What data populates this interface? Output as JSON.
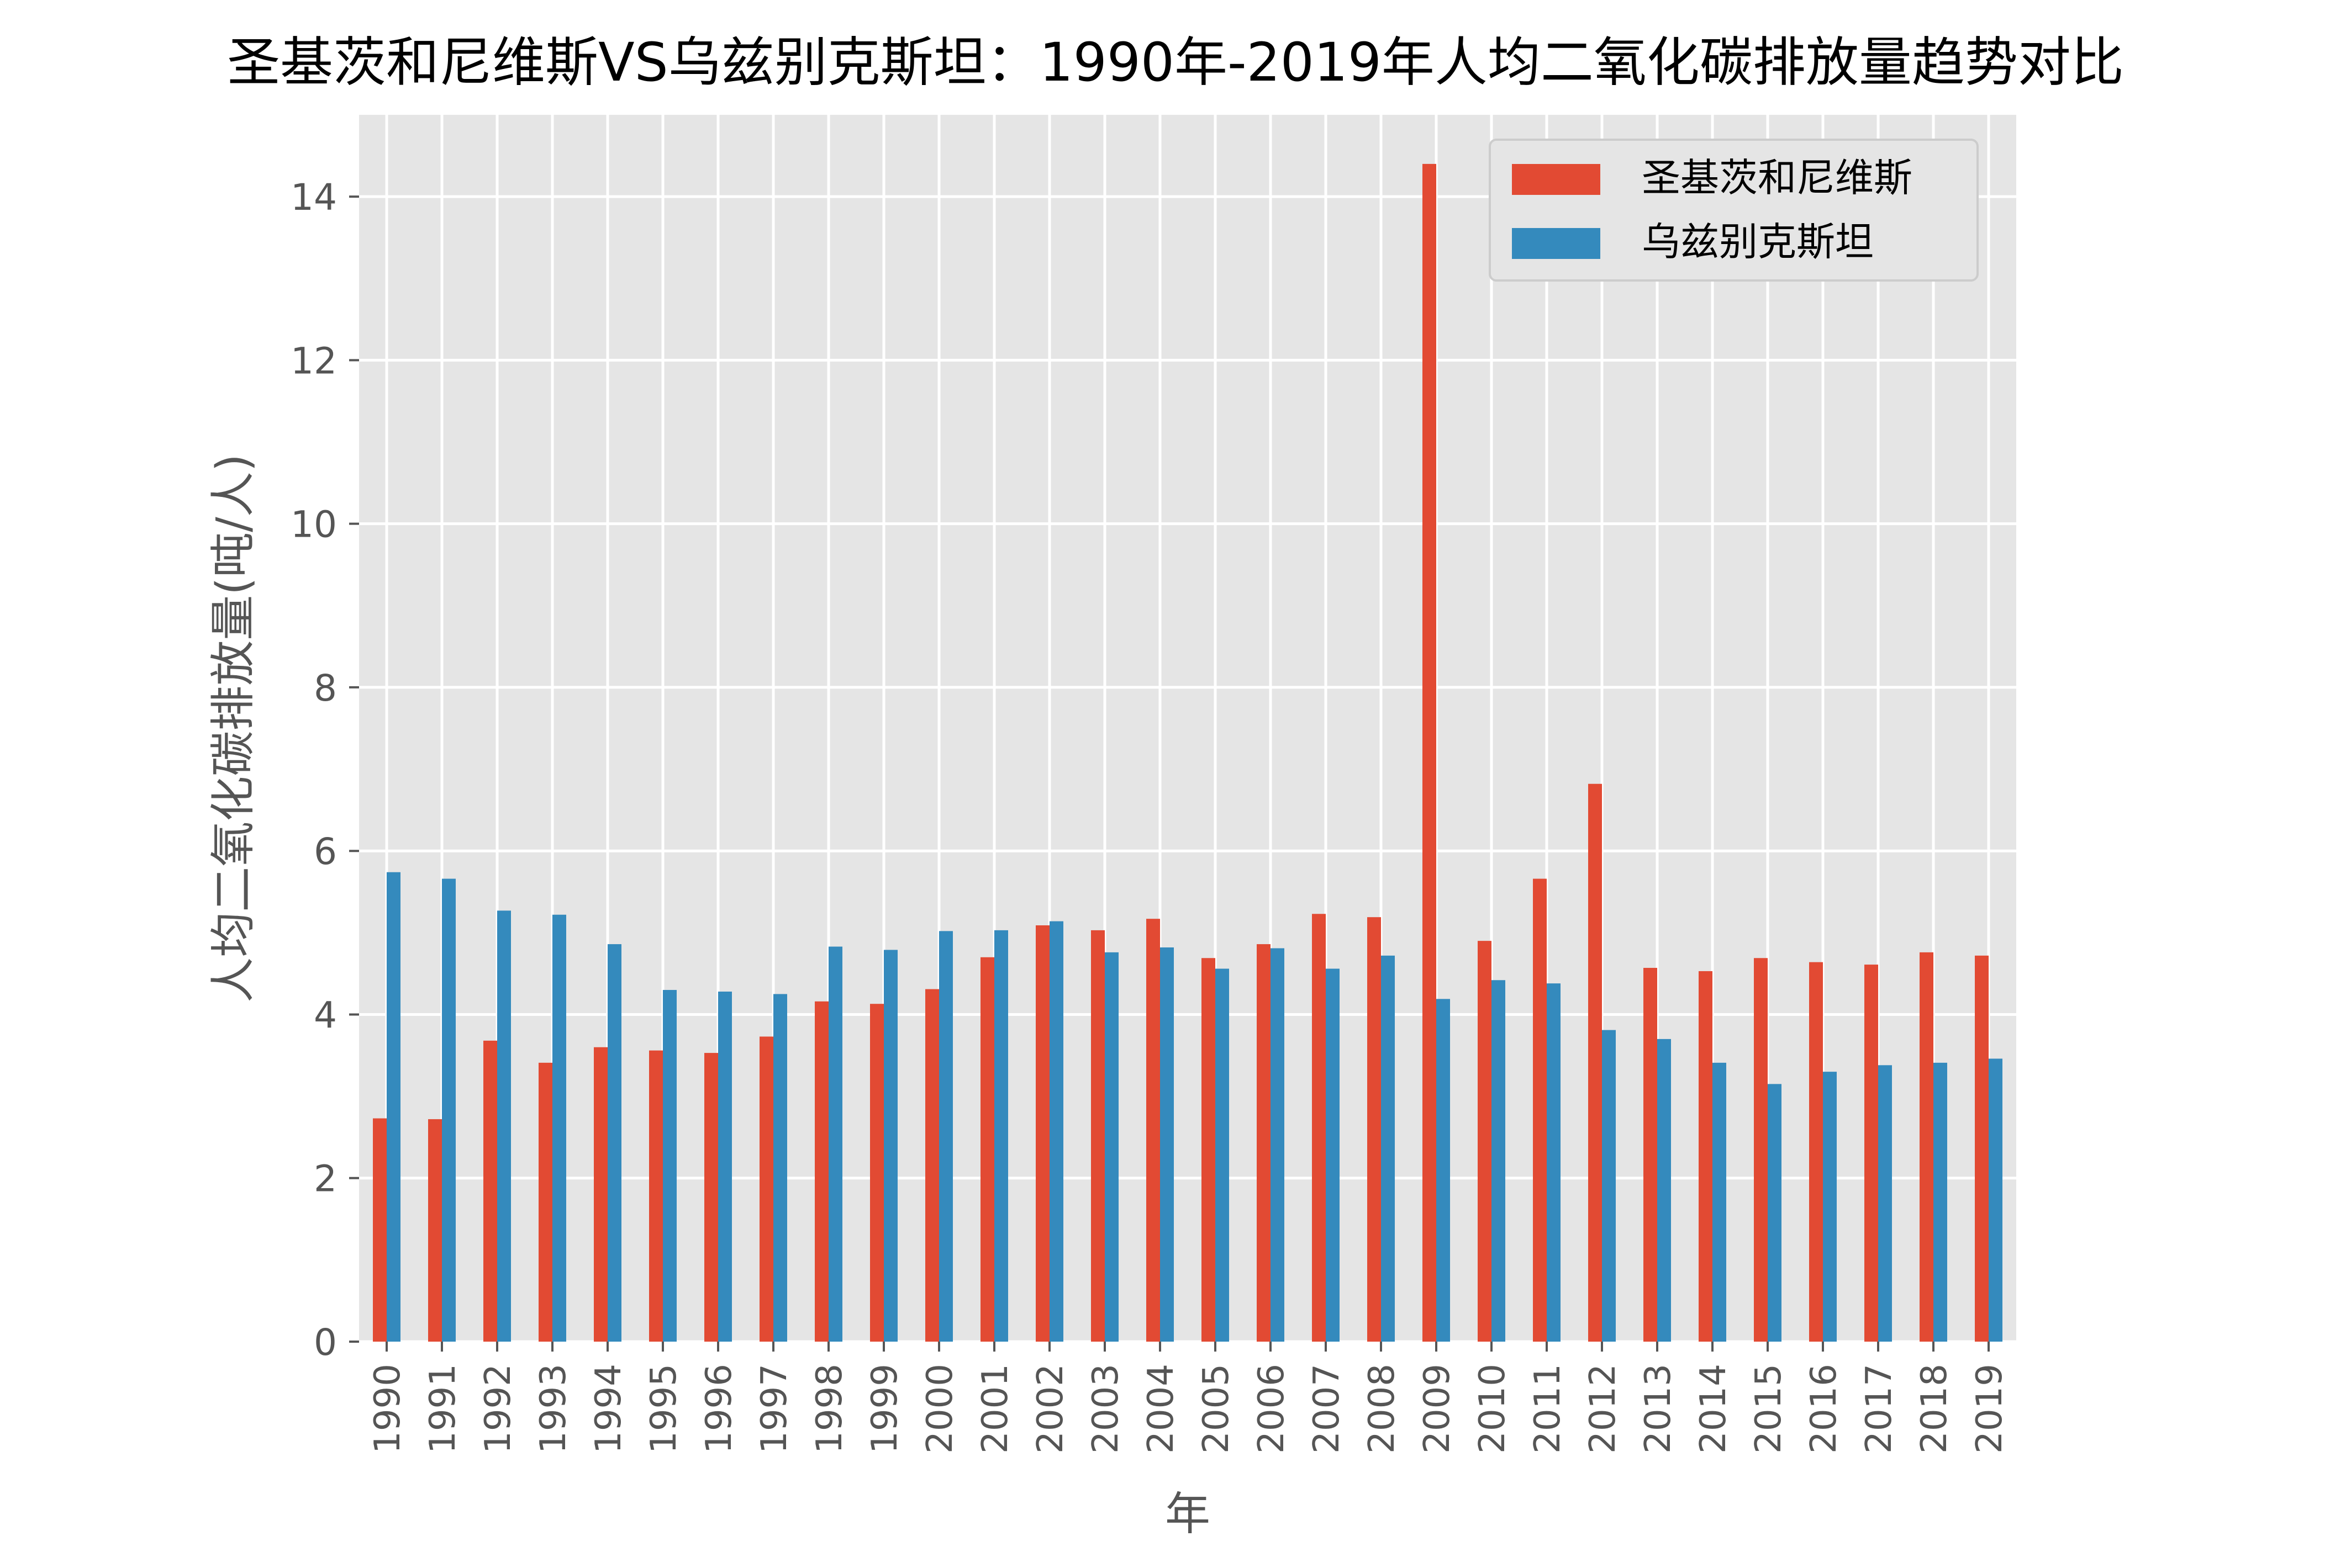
{
  "chart_data": {
    "type": "bar",
    "title": "圣基茨和尼维斯VS乌兹别克斯坦：1990年-2019年人均二氧化碳排放量趋势对比",
    "xlabel": "年",
    "ylabel": "人均二氧化碳排放量(吨/人)",
    "ylim": [
      0,
      15.0
    ],
    "yticks": [
      0,
      2,
      4,
      6,
      8,
      10,
      12,
      14
    ],
    "grid": true,
    "legend_position": "top-right",
    "categories": [
      "1990",
      "1991",
      "1992",
      "1993",
      "1994",
      "1995",
      "1996",
      "1997",
      "1998",
      "1999",
      "2000",
      "2001",
      "2002",
      "2003",
      "2004",
      "2005",
      "2006",
      "2007",
      "2008",
      "2009",
      "2010",
      "2011",
      "2012",
      "2013",
      "2014",
      "2015",
      "2016",
      "2017",
      "2018",
      "2019"
    ],
    "series": [
      {
        "name": "圣基茨和尼维斯",
        "color": "#E24A33",
        "values": [
          2.73,
          2.72,
          3.68,
          3.41,
          3.6,
          3.56,
          3.53,
          3.73,
          4.16,
          4.13,
          4.31,
          4.7,
          5.09,
          5.03,
          5.17,
          4.69,
          4.86,
          5.23,
          5.19,
          14.4,
          4.9,
          5.66,
          6.82,
          4.57,
          4.53,
          4.69,
          4.64,
          4.61,
          4.76,
          4.72
        ]
      },
      {
        "name": "乌兹别克斯坦",
        "color": "#348ABD",
        "values": [
          5.74,
          5.66,
          5.27,
          5.22,
          4.86,
          4.3,
          4.28,
          4.25,
          4.83,
          4.79,
          5.02,
          5.03,
          5.14,
          4.76,
          4.82,
          4.56,
          4.81,
          4.56,
          4.72,
          4.19,
          4.42,
          4.38,
          3.81,
          3.7,
          3.41,
          3.15,
          3.3,
          3.38,
          3.41,
          3.46
        ]
      }
    ]
  },
  "style": {
    "axes_bg": "#E5E5E5",
    "grid_color": "#FFFFFF",
    "tick_color": "#555555",
    "label_color": "#555555",
    "title_color": "#000000"
  }
}
